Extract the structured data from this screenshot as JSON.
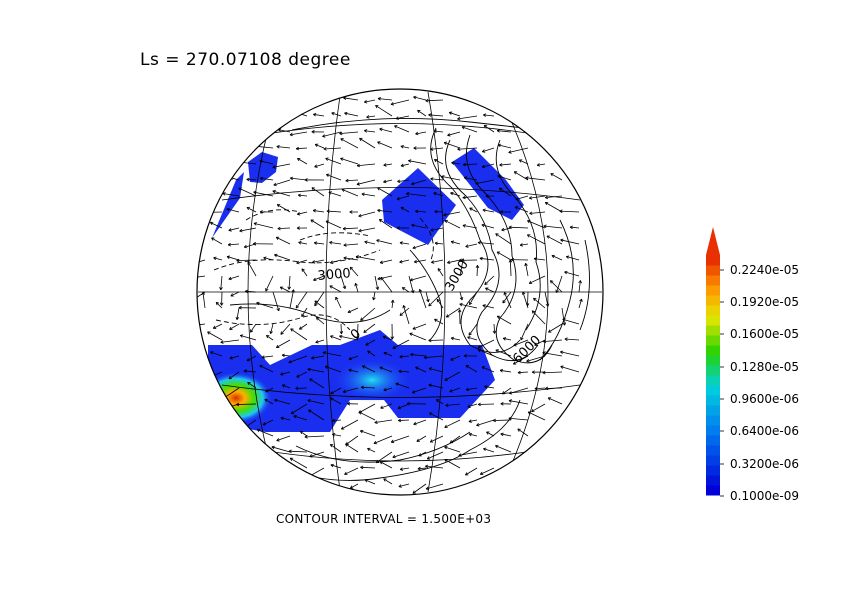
{
  "title": "Ls = 270.07108 degree",
  "footer": "CONTOUR INTERVAL = 1.500E+03",
  "contour_labels": [
    "3000",
    "3000",
    "6000",
    "0"
  ],
  "colorbar": {
    "labels": [
      "0.2240e-05",
      "0.1920e-05",
      "0.1600e-05",
      "0.1280e-05",
      "0.9600e-06",
      "0.6400e-06",
      "0.3200e-06",
      "0.1000e-09"
    ],
    "colors": [
      "#0000d8",
      "#0050f0",
      "#00b4f0",
      "#00d8b0",
      "#30d000",
      "#d8e000",
      "#ffa000",
      "#e83000"
    ]
  },
  "palette": {
    "field_base": "#1a2ef0",
    "field_mid": "#18c8f0",
    "field_hot": "#e04000"
  }
}
